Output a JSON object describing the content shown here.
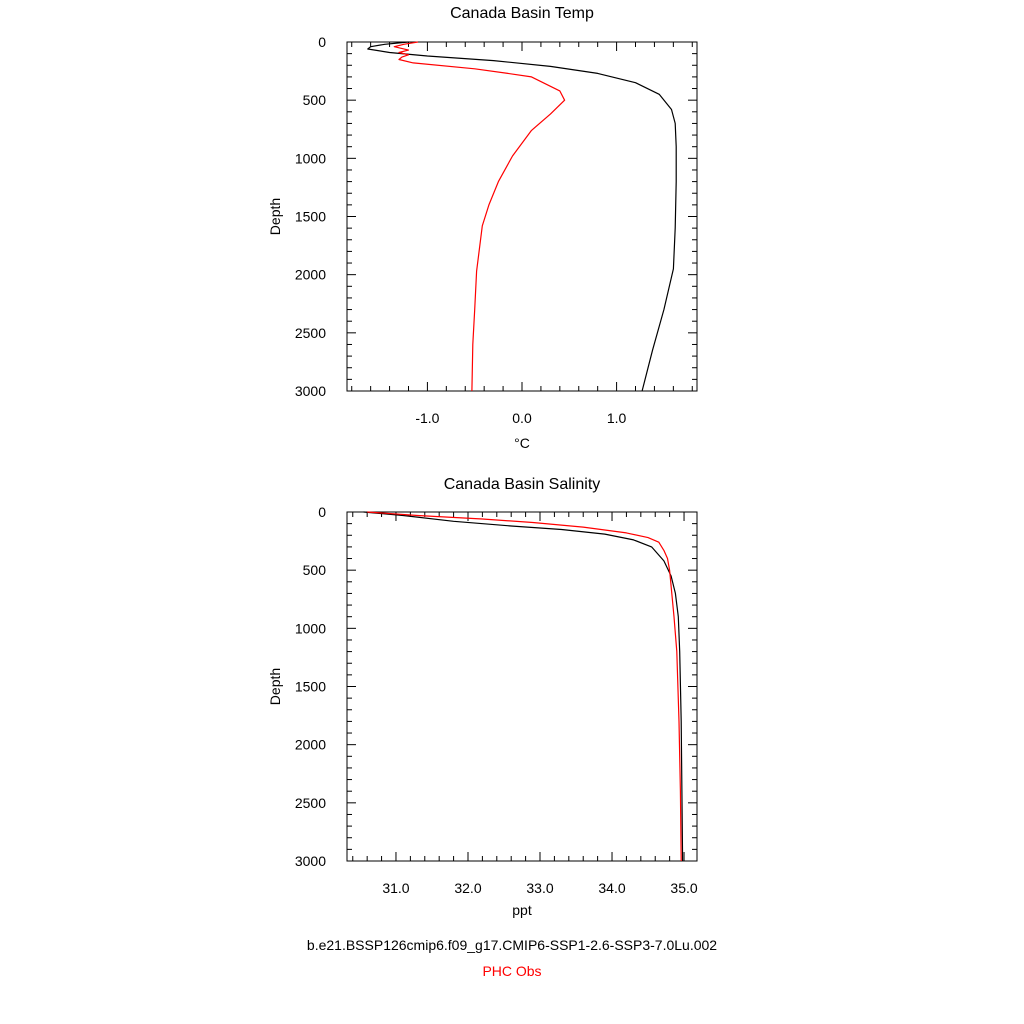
{
  "chart_data": [
    {
      "type": "line",
      "title": "Canada Basin Temp",
      "xlabel": "°C",
      "ylabel": "Depth",
      "xlim": [
        -1.85,
        1.85
      ],
      "ylim": [
        3000,
        0
      ],
      "y_reversed": true,
      "xticks": [
        -1.0,
        0.0,
        1.0
      ],
      "xtick_labels": [
        "-1.0",
        "0.0",
        "1.0"
      ],
      "yticks": [
        0,
        500,
        1000,
        1500,
        2000,
        2500,
        3000
      ],
      "ytick_labels": [
        "0",
        "500",
        "1000",
        "1500",
        "2000",
        "2500",
        "3000"
      ],
      "grid": false,
      "series": [
        {
          "color": "#000000",
          "points": [
            [
              -1.2,
              0
            ],
            [
              -1.45,
              20
            ],
            [
              -1.6,
              40
            ],
            [
              -1.63,
              60
            ],
            [
              -1.4,
              90
            ],
            [
              -1.0,
              120
            ],
            [
              -0.3,
              160
            ],
            [
              0.3,
              210
            ],
            [
              0.8,
              270
            ],
            [
              1.2,
              350
            ],
            [
              1.45,
              450
            ],
            [
              1.58,
              580
            ],
            [
              1.62,
              700
            ],
            [
              1.63,
              900
            ],
            [
              1.63,
              1200
            ],
            [
              1.62,
              1600
            ],
            [
              1.6,
              1950
            ],
            [
              1.5,
              2300
            ],
            [
              1.38,
              2650
            ],
            [
              1.27,
              3000
            ]
          ]
        },
        {
          "color": "#ff0000",
          "points": [
            [
              -1.1,
              0
            ],
            [
              -1.25,
              20
            ],
            [
              -1.35,
              40
            ],
            [
              -1.2,
              70
            ],
            [
              -1.3,
              90
            ],
            [
              -1.2,
              110
            ],
            [
              -1.27,
              130
            ],
            [
              -1.3,
              150
            ],
            [
              -1.15,
              180
            ],
            [
              -0.5,
              230
            ],
            [
              -0.15,
              270
            ],
            [
              0.1,
              300
            ],
            [
              0.4,
              420
            ],
            [
              0.45,
              500
            ],
            [
              0.3,
              620
            ],
            [
              0.1,
              760
            ],
            [
              -0.1,
              980
            ],
            [
              -0.25,
              1200
            ],
            [
              -0.35,
              1400
            ],
            [
              -0.42,
              1580
            ],
            [
              -0.48,
              1970
            ],
            [
              -0.5,
              2300
            ],
            [
              -0.52,
              2600
            ],
            [
              -0.53,
              3000
            ]
          ]
        }
      ]
    },
    {
      "type": "line",
      "title": "Canada Basin Salinity",
      "xlabel": "ppt",
      "ylabel": "Depth",
      "xlim": [
        30.32,
        35.18
      ],
      "ylim": [
        3000,
        0
      ],
      "y_reversed": true,
      "xticks": [
        31.0,
        32.0,
        33.0,
        34.0,
        35.0
      ],
      "xtick_labels": [
        "31.0",
        "32.0",
        "33.0",
        "34.0",
        "35.0"
      ],
      "yticks": [
        0,
        500,
        1000,
        1500,
        2000,
        2500,
        3000
      ],
      "ytick_labels": [
        "0",
        "500",
        "1000",
        "1500",
        "2000",
        "2500",
        "3000"
      ],
      "grid": false,
      "series": [
        {
          "color": "#000000",
          "points": [
            [
              30.55,
              0
            ],
            [
              31.1,
              30
            ],
            [
              31.8,
              80
            ],
            [
              32.6,
              120
            ],
            [
              33.3,
              150
            ],
            [
              33.9,
              190
            ],
            [
              34.3,
              240
            ],
            [
              34.55,
              300
            ],
            [
              34.72,
              420
            ],
            [
              34.82,
              550
            ],
            [
              34.88,
              700
            ],
            [
              34.92,
              900
            ],
            [
              34.94,
              1200
            ],
            [
              34.96,
              1800
            ],
            [
              34.97,
              2400
            ],
            [
              34.98,
              3000
            ]
          ]
        },
        {
          "color": "#ff0000",
          "points": [
            [
              30.6,
              0
            ],
            [
              31.3,
              30
            ],
            [
              32.2,
              60
            ],
            [
              32.9,
              90
            ],
            [
              33.6,
              130
            ],
            [
              34.2,
              180
            ],
            [
              34.5,
              220
            ],
            [
              34.65,
              260
            ],
            [
              34.72,
              330
            ],
            [
              34.77,
              400
            ],
            [
              34.8,
              500
            ],
            [
              34.83,
              700
            ],
            [
              34.86,
              900
            ],
            [
              34.9,
              1200
            ],
            [
              34.93,
              1800
            ],
            [
              34.95,
              2400
            ],
            [
              34.96,
              3000
            ]
          ]
        }
      ]
    }
  ],
  "legend": {
    "model_label": "b.e21.BSSP126cmip6.f09_g17.CMIP6-SSP1-2.6-SSP3-7.0Lu.002",
    "model_color": "#000000",
    "obs_label": "PHC Obs",
    "obs_color": "#ff0000"
  }
}
